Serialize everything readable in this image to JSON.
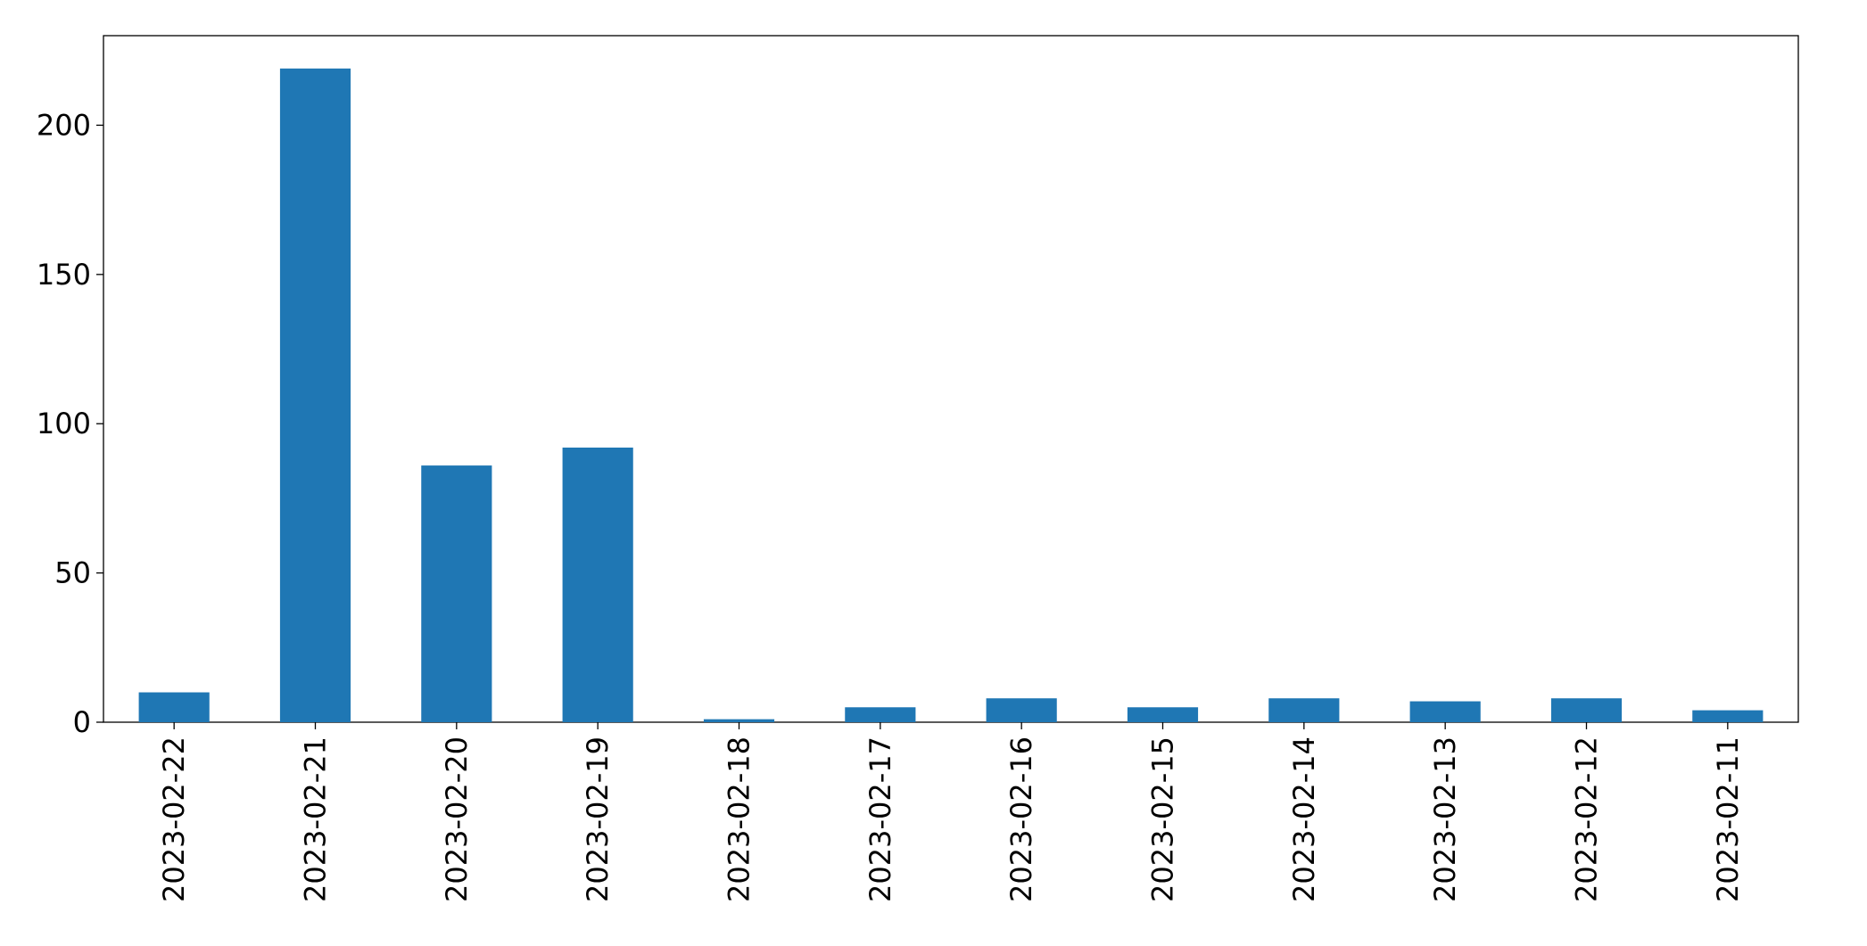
{
  "chart_data": {
    "type": "bar",
    "categories": [
      "2023-02-22",
      "2023-02-21",
      "2023-02-20",
      "2023-02-19",
      "2023-02-18",
      "2023-02-17",
      "2023-02-16",
      "2023-02-15",
      "2023-02-14",
      "2023-02-13",
      "2023-02-12",
      "2023-02-11"
    ],
    "values": [
      10,
      219,
      86,
      92,
      1,
      5,
      8,
      5,
      8,
      7,
      8,
      4
    ],
    "color": "#1f77b4",
    "ylim": [
      0,
      230
    ],
    "yticks": [
      0,
      50,
      100,
      150,
      200
    ],
    "grid": false
  }
}
